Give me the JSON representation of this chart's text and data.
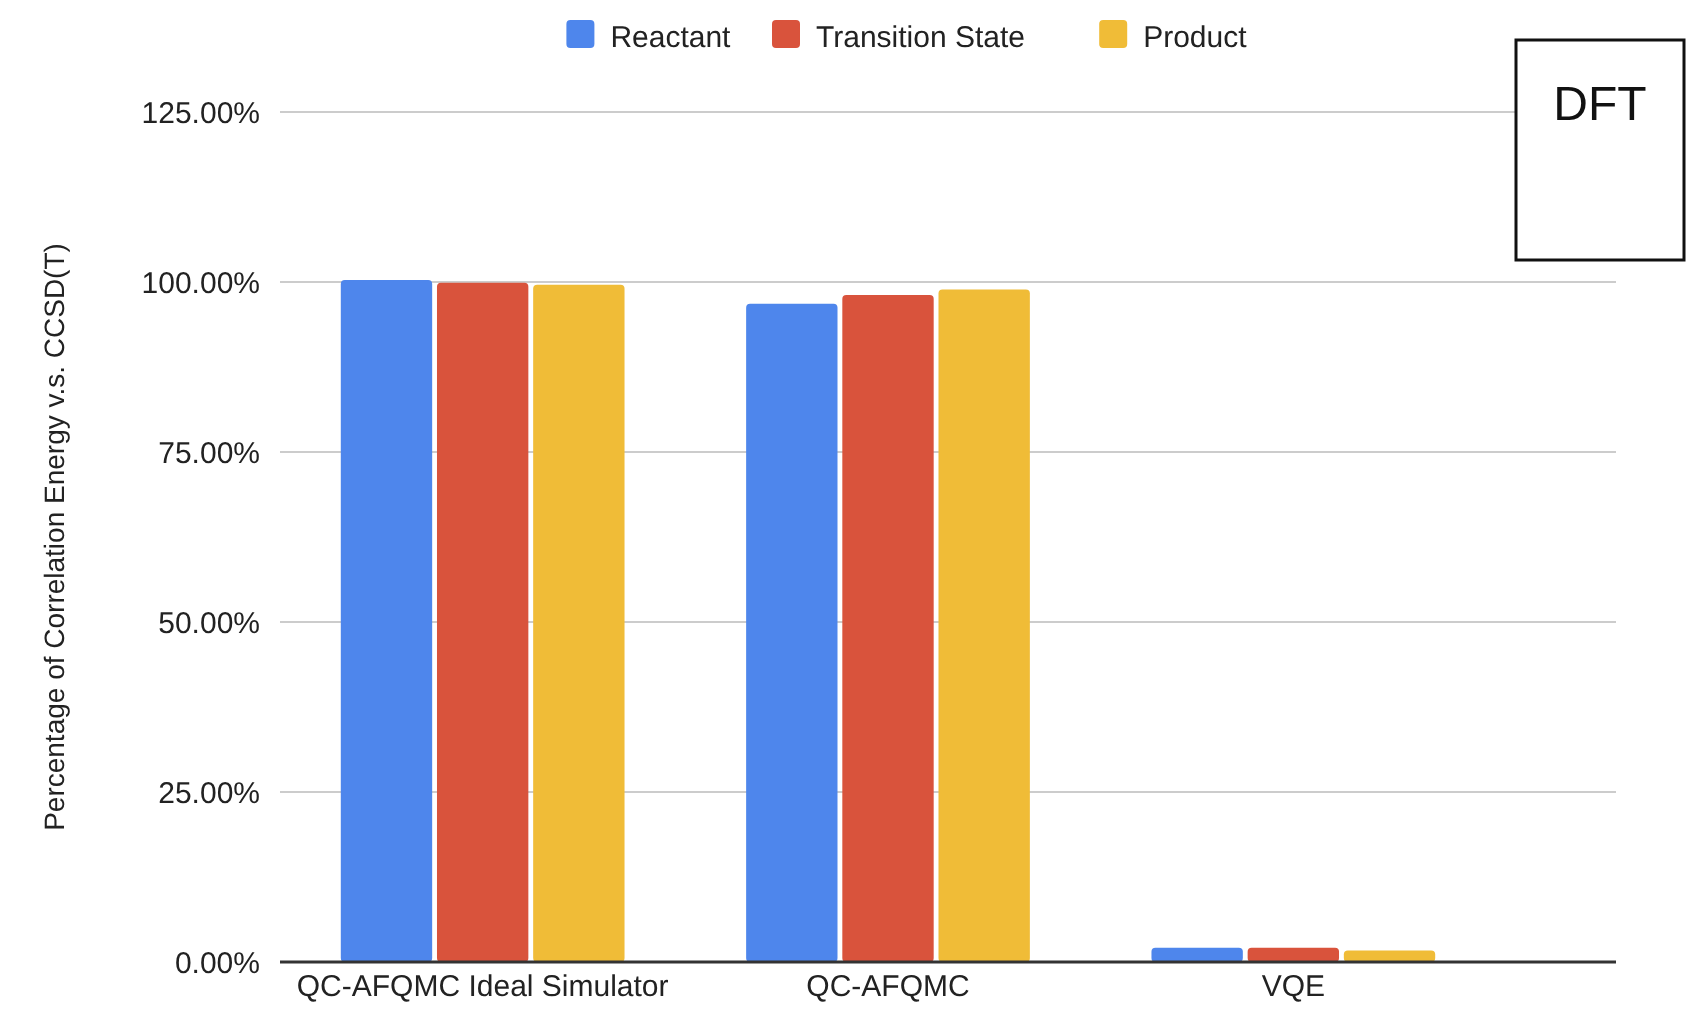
{
  "chart_data": {
    "type": "bar",
    "ylabel": "Percentage of Correlation Energy v.s. CCSD(T)",
    "categories": [
      "QC-AFQMC Ideal Simulator",
      "QC-AFQMC",
      "VQE"
    ],
    "series": [
      {
        "name": "Reactant",
        "color": "#4e86ec",
        "values": [
          100.3,
          96.8,
          2.1
        ]
      },
      {
        "name": "Transition State",
        "color": "#d9533c",
        "values": [
          99.9,
          98.1,
          2.1
        ]
      },
      {
        "name": "Product",
        "color": "#f0bc37",
        "values": [
          99.6,
          98.9,
          1.7
        ]
      }
    ],
    "ylim": [
      0,
      125
    ],
    "yticks": [
      {
        "value": 0,
        "label": "0.00%"
      },
      {
        "value": 25,
        "label": "25.00%"
      },
      {
        "value": 50,
        "label": "50.00%"
      },
      {
        "value": 75,
        "label": "75.00%"
      },
      {
        "value": 100,
        "label": "100.00%"
      },
      {
        "value": 125,
        "label": "125.00%"
      }
    ],
    "grid": "y",
    "legend": "top",
    "annotations": [
      "DFT"
    ]
  }
}
